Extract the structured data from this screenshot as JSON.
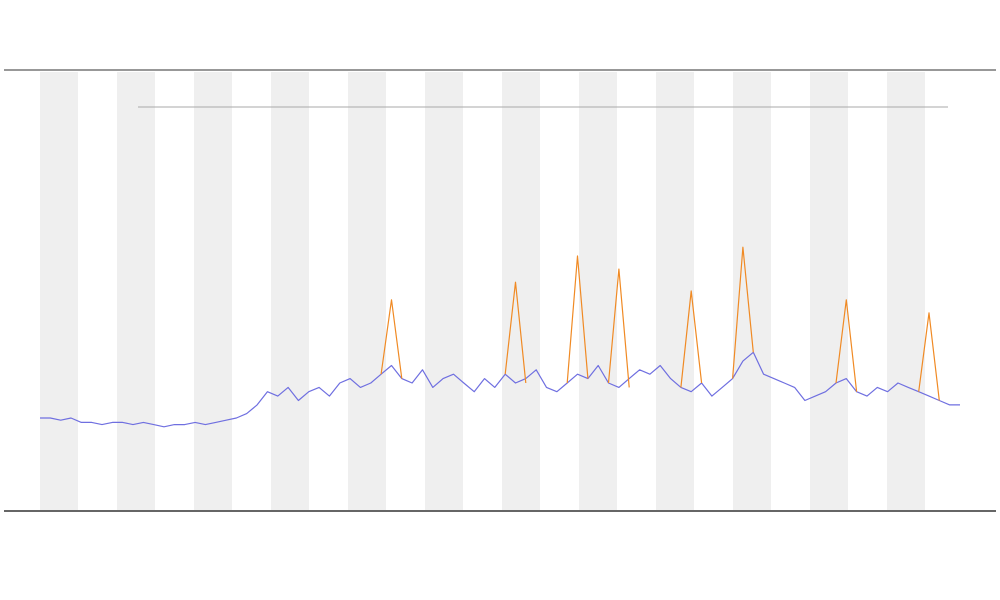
{
  "chart_data": {
    "type": "line",
    "x": [
      0,
      1,
      2,
      3,
      4,
      5,
      6,
      7,
      8,
      9,
      10,
      11,
      12,
      13,
      14,
      15,
      16,
      17,
      18,
      19,
      20,
      21,
      22,
      23,
      24,
      25,
      26,
      27,
      28,
      29,
      30,
      31,
      32,
      33,
      34,
      35,
      36,
      37,
      38,
      39,
      40,
      41,
      42,
      43,
      44,
      45,
      46,
      47,
      48,
      49,
      50,
      51,
      52,
      53,
      54,
      55,
      56,
      57,
      58,
      59,
      60,
      61,
      62,
      63,
      64,
      65,
      66,
      67,
      68,
      69,
      70,
      71,
      72,
      73,
      74,
      75,
      76,
      77,
      78,
      79,
      80,
      81,
      82,
      83,
      84,
      85,
      86,
      87,
      88,
      89
    ],
    "xlim": [
      0,
      89
    ],
    "ylim": [
      0,
      100
    ],
    "series": [
      {
        "color": "#6f6fe0",
        "values": [
          21,
          21,
          20.5,
          21,
          20,
          20,
          19.5,
          20,
          20,
          19.5,
          20,
          19.5,
          19,
          19.5,
          19.5,
          20,
          19.5,
          20,
          20.5,
          21,
          22,
          24,
          27,
          26,
          28,
          25,
          27,
          28,
          26,
          29,
          30,
          28,
          29,
          31,
          33,
          30,
          29,
          32,
          28,
          30,
          31,
          29,
          27,
          30,
          28,
          31,
          29,
          30,
          32,
          28,
          27,
          29,
          31,
          30,
          33,
          29,
          28,
          30,
          32,
          31,
          33,
          30,
          28,
          27,
          29,
          26,
          28,
          30,
          34,
          36,
          31,
          30,
          29,
          28,
          25,
          26,
          27,
          29,
          30,
          27,
          26,
          28,
          27,
          29,
          28,
          27,
          26,
          25,
          24,
          24
        ]
      },
      {
        "color": "#f08a24",
        "values": [
          null,
          null,
          null,
          null,
          null,
          null,
          null,
          null,
          null,
          null,
          null,
          null,
          null,
          null,
          null,
          null,
          null,
          null,
          null,
          null,
          null,
          null,
          null,
          null,
          null,
          null,
          null,
          null,
          null,
          null,
          null,
          null,
          null,
          31,
          48,
          30,
          null,
          null,
          null,
          null,
          null,
          null,
          null,
          null,
          null,
          31,
          52,
          29,
          null,
          null,
          null,
          29,
          58,
          30,
          null,
          29,
          55,
          28,
          null,
          null,
          null,
          null,
          28,
          50,
          29,
          null,
          null,
          30,
          60,
          36,
          null,
          null,
          null,
          null,
          null,
          null,
          null,
          29,
          48,
          27,
          null,
          null,
          null,
          null,
          null,
          27,
          45,
          25,
          null,
          null
        ]
      }
    ]
  }
}
